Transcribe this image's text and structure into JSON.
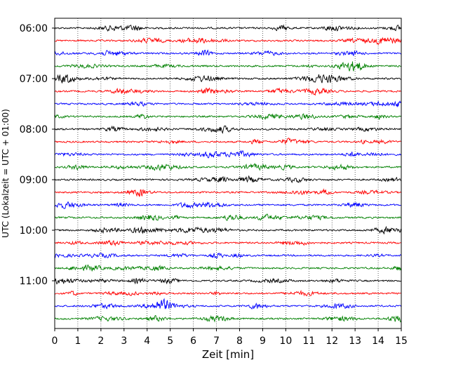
{
  "chart_data": {
    "type": "line",
    "title": "",
    "xlabel": "Zeit  [min]",
    "ylabel": "UTC (Lokalzeit = UTC + 01:00)",
    "xlim": [
      0,
      15
    ],
    "x_ticks": [
      "0",
      "1",
      "2",
      "3",
      "4",
      "5",
      "6",
      "7",
      "8",
      "9",
      "10",
      "11",
      "12",
      "13",
      "14",
      "15"
    ],
    "y_ticks": [
      "06:00",
      "07:00",
      "08:00",
      "09:00",
      "10:00",
      "11:00"
    ],
    "grid": "vertical dotted",
    "trace_interval_minutes": 15,
    "start_time": "06:00",
    "trace_colors": [
      "#000000",
      "#ff0000",
      "#0000ff",
      "#008000"
    ],
    "trace_count": 24
  }
}
